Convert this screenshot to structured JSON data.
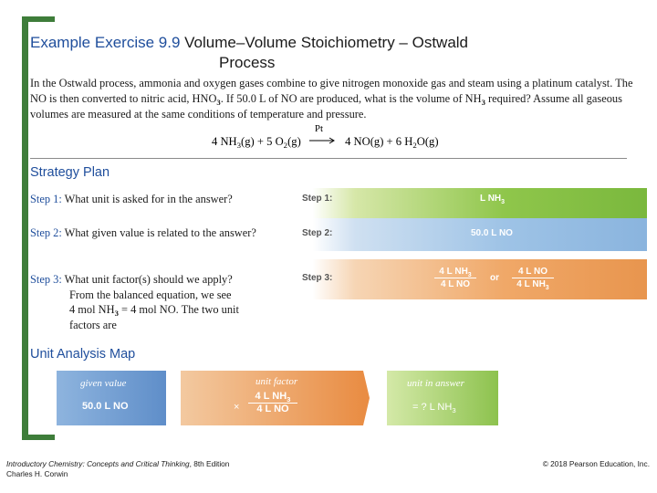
{
  "title": {
    "prefix": "Example Exercise 9.9 ",
    "main_line1": "Volume–Volume Stoichiometry – Ostwald",
    "main_line2": "Process"
  },
  "problem": {
    "text_a": "In the Ostwald process, ammonia and oxygen gases combine to give nitrogen monoxide gas and steam using a platinum catalyst. The NO is then converted to nitric acid, HNO",
    "text_a_sub": "3",
    "text_b": ". If 50.0 L of NO are produced, what is the volume of NH",
    "text_b_sub": "3",
    "text_c": " required? Assume all gaseous volumes are measured at the same conditions of temperature and pressure."
  },
  "equation": {
    "reactant1": "4 NH",
    "reactant1_sub": "3",
    "reactant1_state": "(g) + 5 O",
    "reactant2_sub": "2",
    "reactant2_state": "(g)",
    "catalyst": "Pt",
    "product1": "4 NO(g) + 6 H",
    "product2_sub": "2",
    "product2_state": "O(g)"
  },
  "strategy": {
    "heading": "Strategy Plan",
    "steps": [
      {
        "label": "Step 1:",
        "text": " What unit is asked for in the answer?"
      },
      {
        "label": "Step 2:",
        "text": " What given value is related to the answer?"
      },
      {
        "label": "Step 3:",
        "text": " What unit factor(s) should we apply?"
      }
    ],
    "step3_more": [
      "From the balanced equation, we see",
      "4 mol NH",
      "3",
      " = 4 mol NO. The two unit",
      "factors are"
    ],
    "bars": {
      "step1_label": "Step 1:",
      "step1_value": "L NH",
      "step1_sub": "3",
      "step2_label": "Step 2:",
      "step2_value": "50.0 L NO",
      "step3_label": "Step 3:",
      "frac1_num": "4 L NH",
      "frac1_num_sub": "3",
      "frac1_den": "4 L NO",
      "or": "or",
      "frac2_num": "4 L NO",
      "frac2_den": "4 L NH",
      "frac2_den_sub": "3"
    }
  },
  "unit_map": {
    "heading": "Unit Analysis Map",
    "given_caption": "given value",
    "given_value": "50.0 L NO",
    "factor_caption": "unit factor",
    "times": "×",
    "factor_num": "4 L NH",
    "factor_num_sub": "3",
    "factor_den": "4 L NO",
    "answer_caption": "unit in answer",
    "answer_value": "= ? L NH",
    "answer_sub": "3"
  },
  "footer": {
    "book_title": "Introductory Chemistry: Concepts and Critical Thinking",
    "edition": ", 8th Edition",
    "author": "Charles H. Corwin",
    "copyright": "© 2018 Pearson Education, Inc."
  }
}
